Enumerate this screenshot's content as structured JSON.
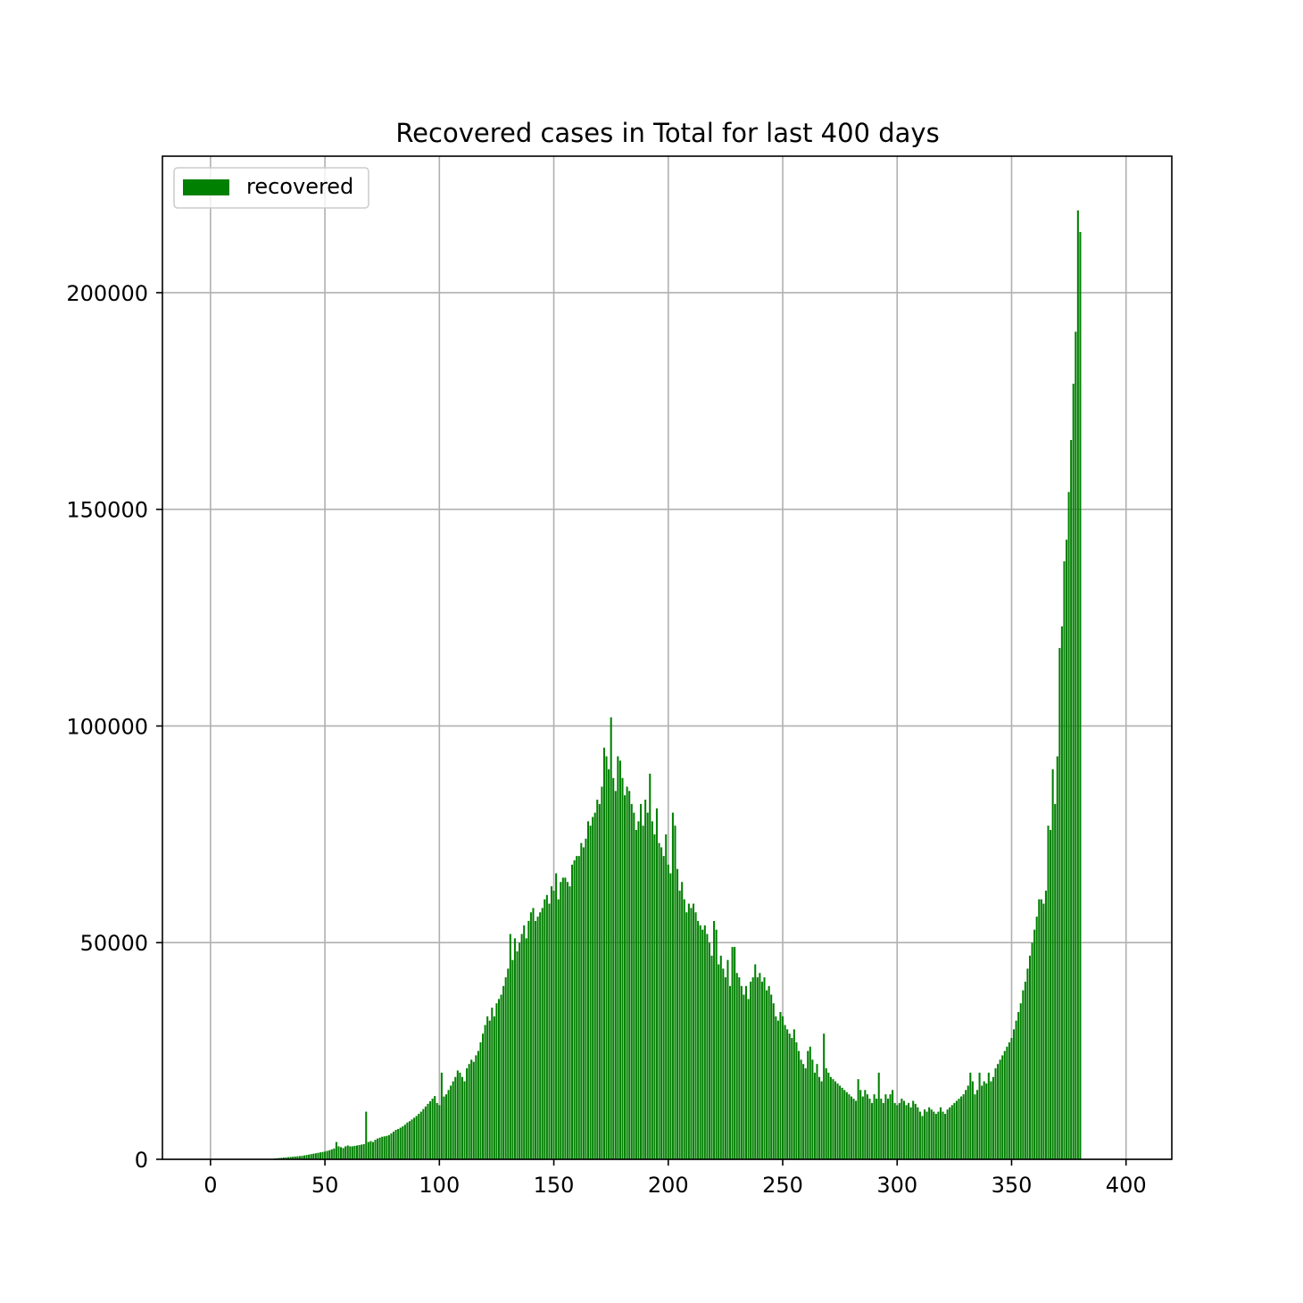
{
  "chart_data": {
    "type": "bar",
    "title": "Recovered cases in Total for last 400 days",
    "xlabel": "",
    "ylabel": "",
    "xlim": [
      -21,
      420
    ],
    "ylim": [
      0,
      231500
    ],
    "x_ticks": [
      0,
      50,
      100,
      150,
      200,
      250,
      300,
      350,
      400
    ],
    "x_tick_labels": [
      "0",
      "50",
      "100",
      "150",
      "200",
      "250",
      "300",
      "350",
      "400"
    ],
    "y_ticks": [
      0,
      50000,
      100000,
      150000,
      200000
    ],
    "y_tick_labels": [
      "0",
      "50000",
      "100000",
      "150000",
      "200000"
    ],
    "grid": true,
    "legend": {
      "position": "top-left",
      "entries": [
        {
          "label": "recovered",
          "color": "#008000"
        }
      ]
    },
    "bar_color": "#008000",
    "x_start": 0,
    "values": [
      0,
      0,
      0,
      0,
      0,
      0,
      0,
      0,
      0,
      0,
      0,
      0,
      0,
      0,
      0,
      0,
      0,
      0,
      0,
      0,
      0,
      0,
      0,
      0,
      0,
      0,
      0,
      0,
      200,
      250,
      300,
      350,
      400,
      450,
      500,
      550,
      600,
      650,
      700,
      750,
      800,
      900,
      1000,
      1100,
      1200,
      1300,
      1400,
      1500,
      1600,
      1700,
      1800,
      1950,
      2100,
      2300,
      2500,
      4000,
      3000,
      2800,
      2600,
      3000,
      3200,
      3000,
      3000,
      3100,
      3200,
      3300,
      3400,
      3500,
      11000,
      4000,
      4200,
      4000,
      4500,
      4800,
      5000,
      5200,
      5300,
      5400,
      5600,
      6000,
      6400,
      6800,
      7000,
      7300,
      7600,
      8000,
      8500,
      8800,
      9200,
      9600,
      10000,
      10500,
      11000,
      11600,
      12200,
      12800,
      13400,
      14000,
      14600,
      13000,
      12500,
      20000,
      14500,
      15000,
      16000,
      17000,
      18000,
      19000,
      20500,
      20000,
      19000,
      18000,
      21000,
      22000,
      23000,
      22500,
      24000,
      25000,
      27000,
      29000,
      31000,
      33000,
      32000,
      35000,
      33000,
      36000,
      37000,
      38000,
      40000,
      42000,
      44000,
      52000,
      46000,
      51000,
      48000,
      50000,
      52000,
      54000,
      51000,
      55000,
      57000,
      58000,
      55000,
      56000,
      57000,
      58000,
      60000,
      61000,
      59000,
      63000,
      62000,
      66000,
      60000,
      64000,
      65000,
      65000,
      64000,
      63000,
      68000,
      69000,
      70000,
      70000,
      73000,
      72000,
      74000,
      78000,
      77000,
      79000,
      80000,
      83000,
      82000,
      86000,
      95000,
      93000,
      90000,
      102000,
      88000,
      85000,
      93000,
      92000,
      88000,
      84000,
      86000,
      85000,
      82000,
      80000,
      76000,
      78000,
      82000,
      77000,
      83000,
      80000,
      89000,
      78000,
      75000,
      81000,
      73000,
      72000,
      70000,
      75000,
      68000,
      66000,
      80000,
      77000,
      67000,
      62000,
      64000,
      60000,
      57000,
      59000,
      58000,
      59000,
      57000,
      55000,
      54000,
      53000,
      54000,
      52000,
      50000,
      47000,
      55000,
      53000,
      45000,
      47000,
      44000,
      42000,
      46000,
      40000,
      49000,
      49000,
      43000,
      42000,
      40000,
      38000,
      40000,
      37000,
      41000,
      42000,
      45000,
      42000,
      43000,
      41000,
      42000,
      39000,
      40000,
      38000,
      36000,
      33000,
      32000,
      34000,
      33000,
      31000,
      30000,
      29000,
      28000,
      30000,
      27000,
      25000,
      23000,
      22000,
      21000,
      25000,
      26000,
      23000,
      20000,
      22000,
      19000,
      18000,
      29000,
      21000,
      20000,
      19000,
      18500,
      18000,
      17500,
      17000,
      16500,
      16000,
      15500,
      15000,
      14500,
      14000,
      13500,
      18500,
      16000,
      14500,
      16000,
      15000,
      14000,
      13000,
      15000,
      14000,
      20000,
      14000,
      13000,
      15000,
      14000,
      15000,
      16000,
      13000,
      12500,
      13000,
      14000,
      13500,
      12500,
      13000,
      12000,
      13500,
      12800,
      12000,
      11000,
      10000,
      11500,
      11000,
      12000,
      11500,
      11000,
      10500,
      11000,
      12000,
      11000,
      10500,
      11500,
      12000,
      12500,
      13000,
      13500,
      14000,
      14500,
      15000,
      16000,
      17000,
      20000,
      18000,
      15000,
      16000,
      20000,
      17000,
      18000,
      17500,
      20000,
      18000,
      19000,
      21000,
      22000,
      23000,
      24000,
      25000,
      26000,
      27000,
      28000,
      30000,
      32000,
      34000,
      36000,
      39000,
      41000,
      44000,
      47000,
      50000,
      53000,
      56000,
      60000,
      60000,
      59000,
      62000,
      77000,
      76000,
      90000,
      82000,
      93000,
      118000,
      123000,
      138000,
      143000,
      154000,
      166000,
      179000,
      191000,
      219000,
      214000
    ],
    "series": [
      {
        "name": "recovered",
        "values_ref": "values"
      }
    ]
  }
}
